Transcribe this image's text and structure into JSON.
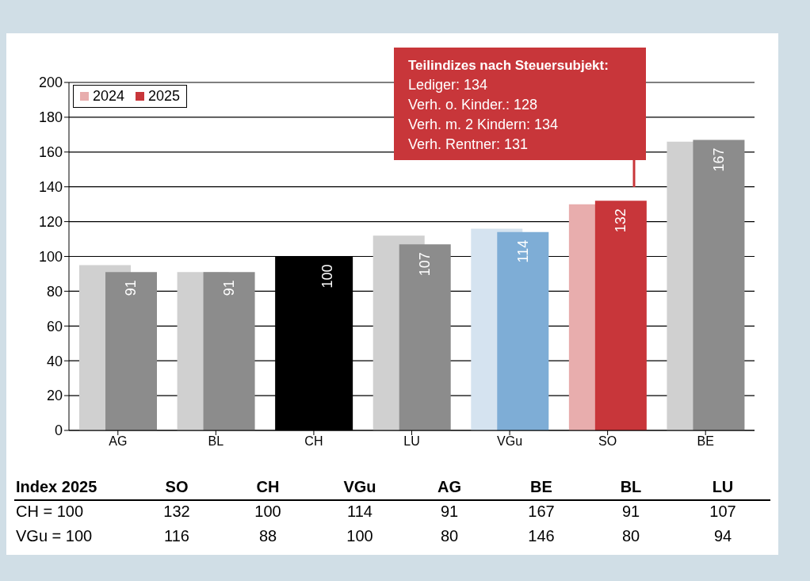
{
  "chart_data": {
    "type": "bar",
    "categories": [
      "AG",
      "BL",
      "CH",
      "LU",
      "VGu",
      "SO",
      "BE"
    ],
    "series": [
      {
        "name": "2024",
        "color": "#e8adad",
        "colors": [
          "#d0d0d0",
          "#d0d0d0",
          "#000000",
          "#d0d0d0",
          "#d5e3f0",
          "#e8adad",
          "#d0d0d0"
        ],
        "values": [
          95,
          91,
          100,
          112,
          116,
          130,
          166
        ]
      },
      {
        "name": "2025",
        "color": "#c8363a",
        "colors": [
          "#8c8c8c",
          "#8c8c8c",
          "#000000",
          "#8c8c8c",
          "#7eadd6",
          "#c8363a",
          "#8c8c8c"
        ],
        "values": [
          91,
          91,
          100,
          107,
          114,
          132,
          167
        ],
        "value_labels": [
          "91",
          "91",
          "100",
          "107",
          "114",
          "132",
          "167"
        ]
      }
    ],
    "ylim": [
      0,
      200
    ],
    "yticks": [
      0,
      20,
      40,
      60,
      80,
      100,
      120,
      140,
      160,
      180,
      200
    ],
    "grid": "y",
    "legend": "top left",
    "annotations": [
      "Teilindizes nach Steuersubjekt:\nLediger: 134\nVerh. o. Kinder.: 128\nVerh. m. 2 Kindern: 134\nVerh. Rentner: 131",
      "Index 2025",
      "SO",
      "CH",
      "VGu",
      "AG",
      "BE",
      "BL",
      "LU",
      "CH = 100",
      "132",
      "100",
      "114",
      "91",
      "167",
      "91",
      "107",
      "VGu = 100",
      "116",
      "88",
      "100",
      "80",
      "146",
      "80",
      "94"
    ]
  }
}
